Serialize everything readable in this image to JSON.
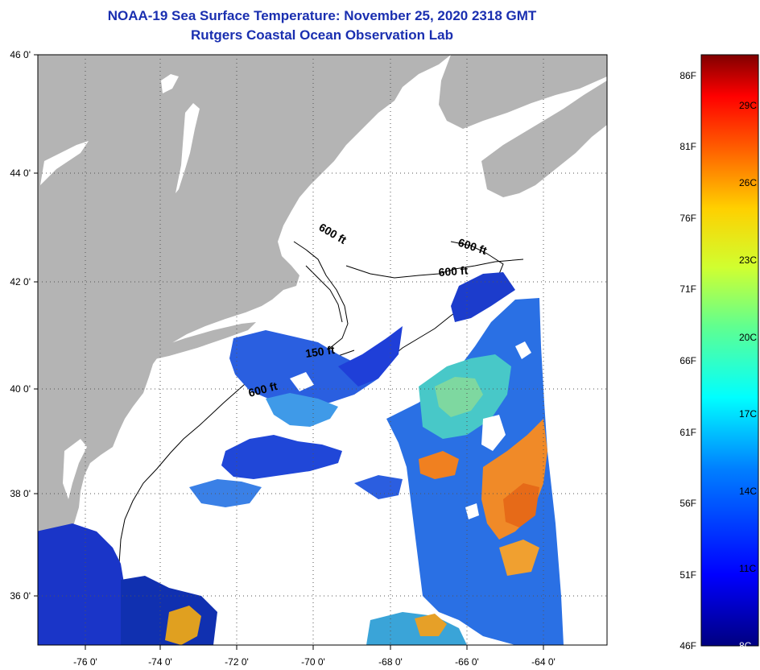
{
  "title_line1": "NOAA-19 Sea Surface Temperature:  November 25, 2020 2318 GMT",
  "title_line2": "Rutgers Coastal Ocean Observation Lab",
  "lat_labels": [
    "46 0'",
    "44 0'",
    "42 0'",
    "40 0'",
    "38 0'",
    "36 0'"
  ],
  "lon_labels": [
    "-76 0'",
    "-74 0'",
    "-72 0'",
    "-70 0'",
    "-68 0'",
    "-66 0'",
    "-64 0'"
  ],
  "contour_labels": [
    "600 ft",
    "600 ft",
    "600 ft",
    "150 ft",
    "600 ft"
  ],
  "colorbar": {
    "fahrenheit": [
      "86F",
      "81F",
      "76F",
      "71F",
      "66F",
      "61F",
      "56F",
      "51F",
      "46F"
    ],
    "celsius": [
      "29C",
      "26C",
      "23C",
      "20C",
      "17C",
      "14C",
      "11C",
      "8C"
    ]
  },
  "colors": {
    "title": "#1a2fb0",
    "land": "#b4b4b4",
    "water": "#ffffff",
    "scale_cold": "#000080",
    "scale_warm": "#800000"
  }
}
